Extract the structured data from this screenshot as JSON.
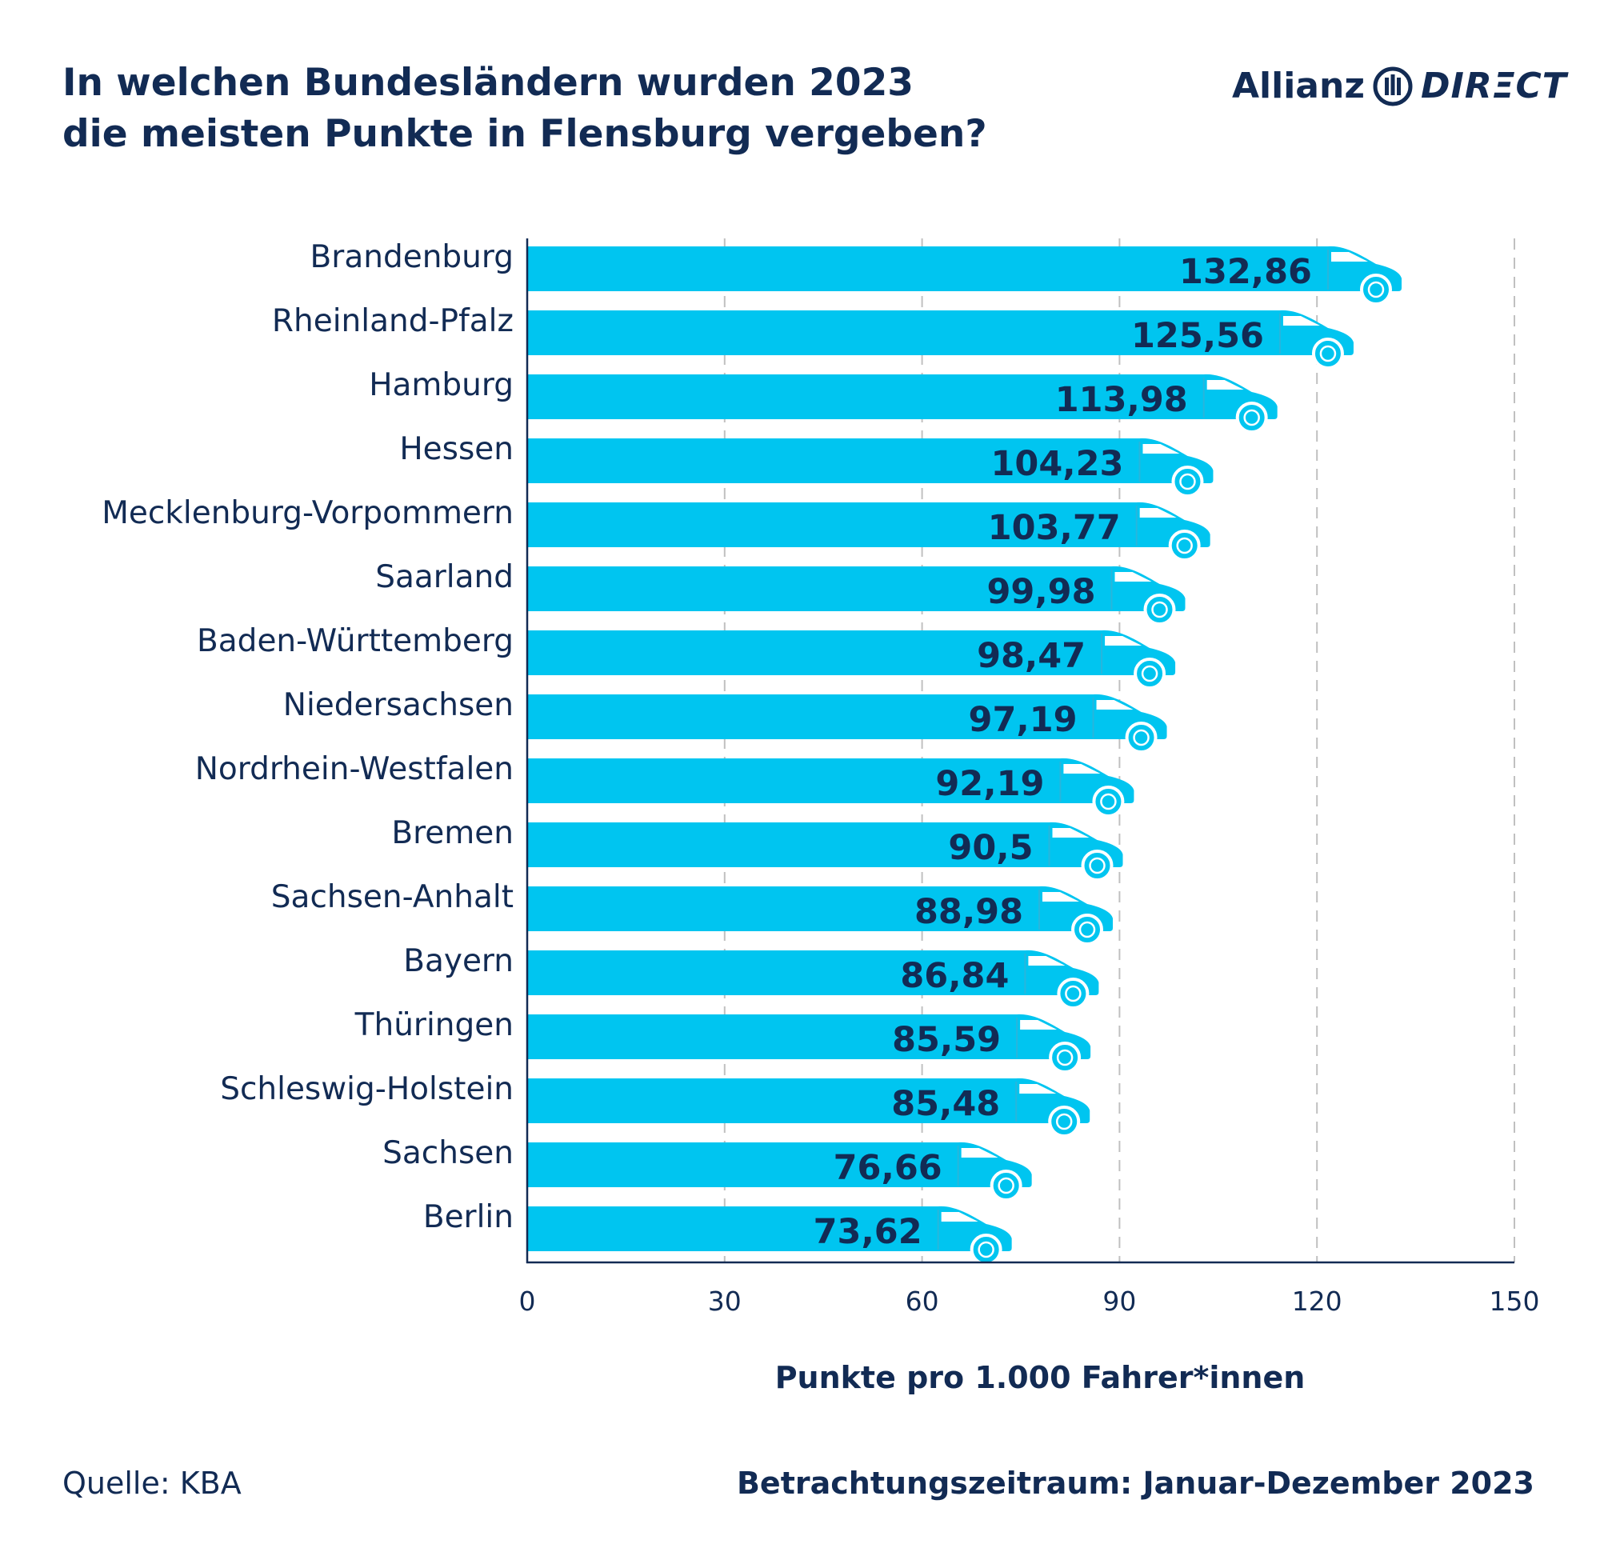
{
  "header": {
    "title_line1": "In welchen Bundesländern wurden 2023",
    "title_line2": "die meisten Punkte in Flensburg vergeben?"
  },
  "logo": {
    "brand_a": "Allianz",
    "brand_b": "DIRΞCT",
    "icon": "allianz-eagle-icon"
  },
  "footer": {
    "source": "Quelle: KBA",
    "period": "Betrachtungszeitraum: Januar-Dezember 2023"
  },
  "colors": {
    "bar": "#00c5f0",
    "text": "#122b54",
    "grid": "#c0c0c0"
  },
  "chart_data": {
    "type": "bar",
    "orientation": "horizontal",
    "categories": [
      "Brandenburg",
      "Rheinland-Pfalz",
      "Hamburg",
      "Hessen",
      "Mecklenburg-Vorpommern",
      "Saarland",
      "Baden-Württemberg",
      "Niedersachsen",
      "Nordrhein-Westfalen",
      "Bremen",
      "Sachsen-Anhalt",
      "Bayern",
      "Thüringen",
      "Schleswig-Holstein",
      "Sachsen",
      "Berlin"
    ],
    "values": [
      132.86,
      125.56,
      113.98,
      104.23,
      103.77,
      99.98,
      98.47,
      97.19,
      92.19,
      90.5,
      88.98,
      86.84,
      85.59,
      85.48,
      76.66,
      73.62
    ],
    "value_labels": [
      "132,86",
      "125,56",
      "113,98",
      "104,23",
      "103,77",
      "99,98",
      "98,47",
      "97,19",
      "92,19",
      "90,5",
      "88,98",
      "86,84",
      "85,59",
      "85,48",
      "76,66",
      "73,62"
    ],
    "xlabel": "Punkte pro 1.000 Fahrer*innen",
    "xlim": [
      0,
      150
    ],
    "xticks": [
      0,
      30,
      60,
      90,
      120,
      150
    ],
    "grid": "dashed vertical",
    "bar_shape": "car"
  }
}
